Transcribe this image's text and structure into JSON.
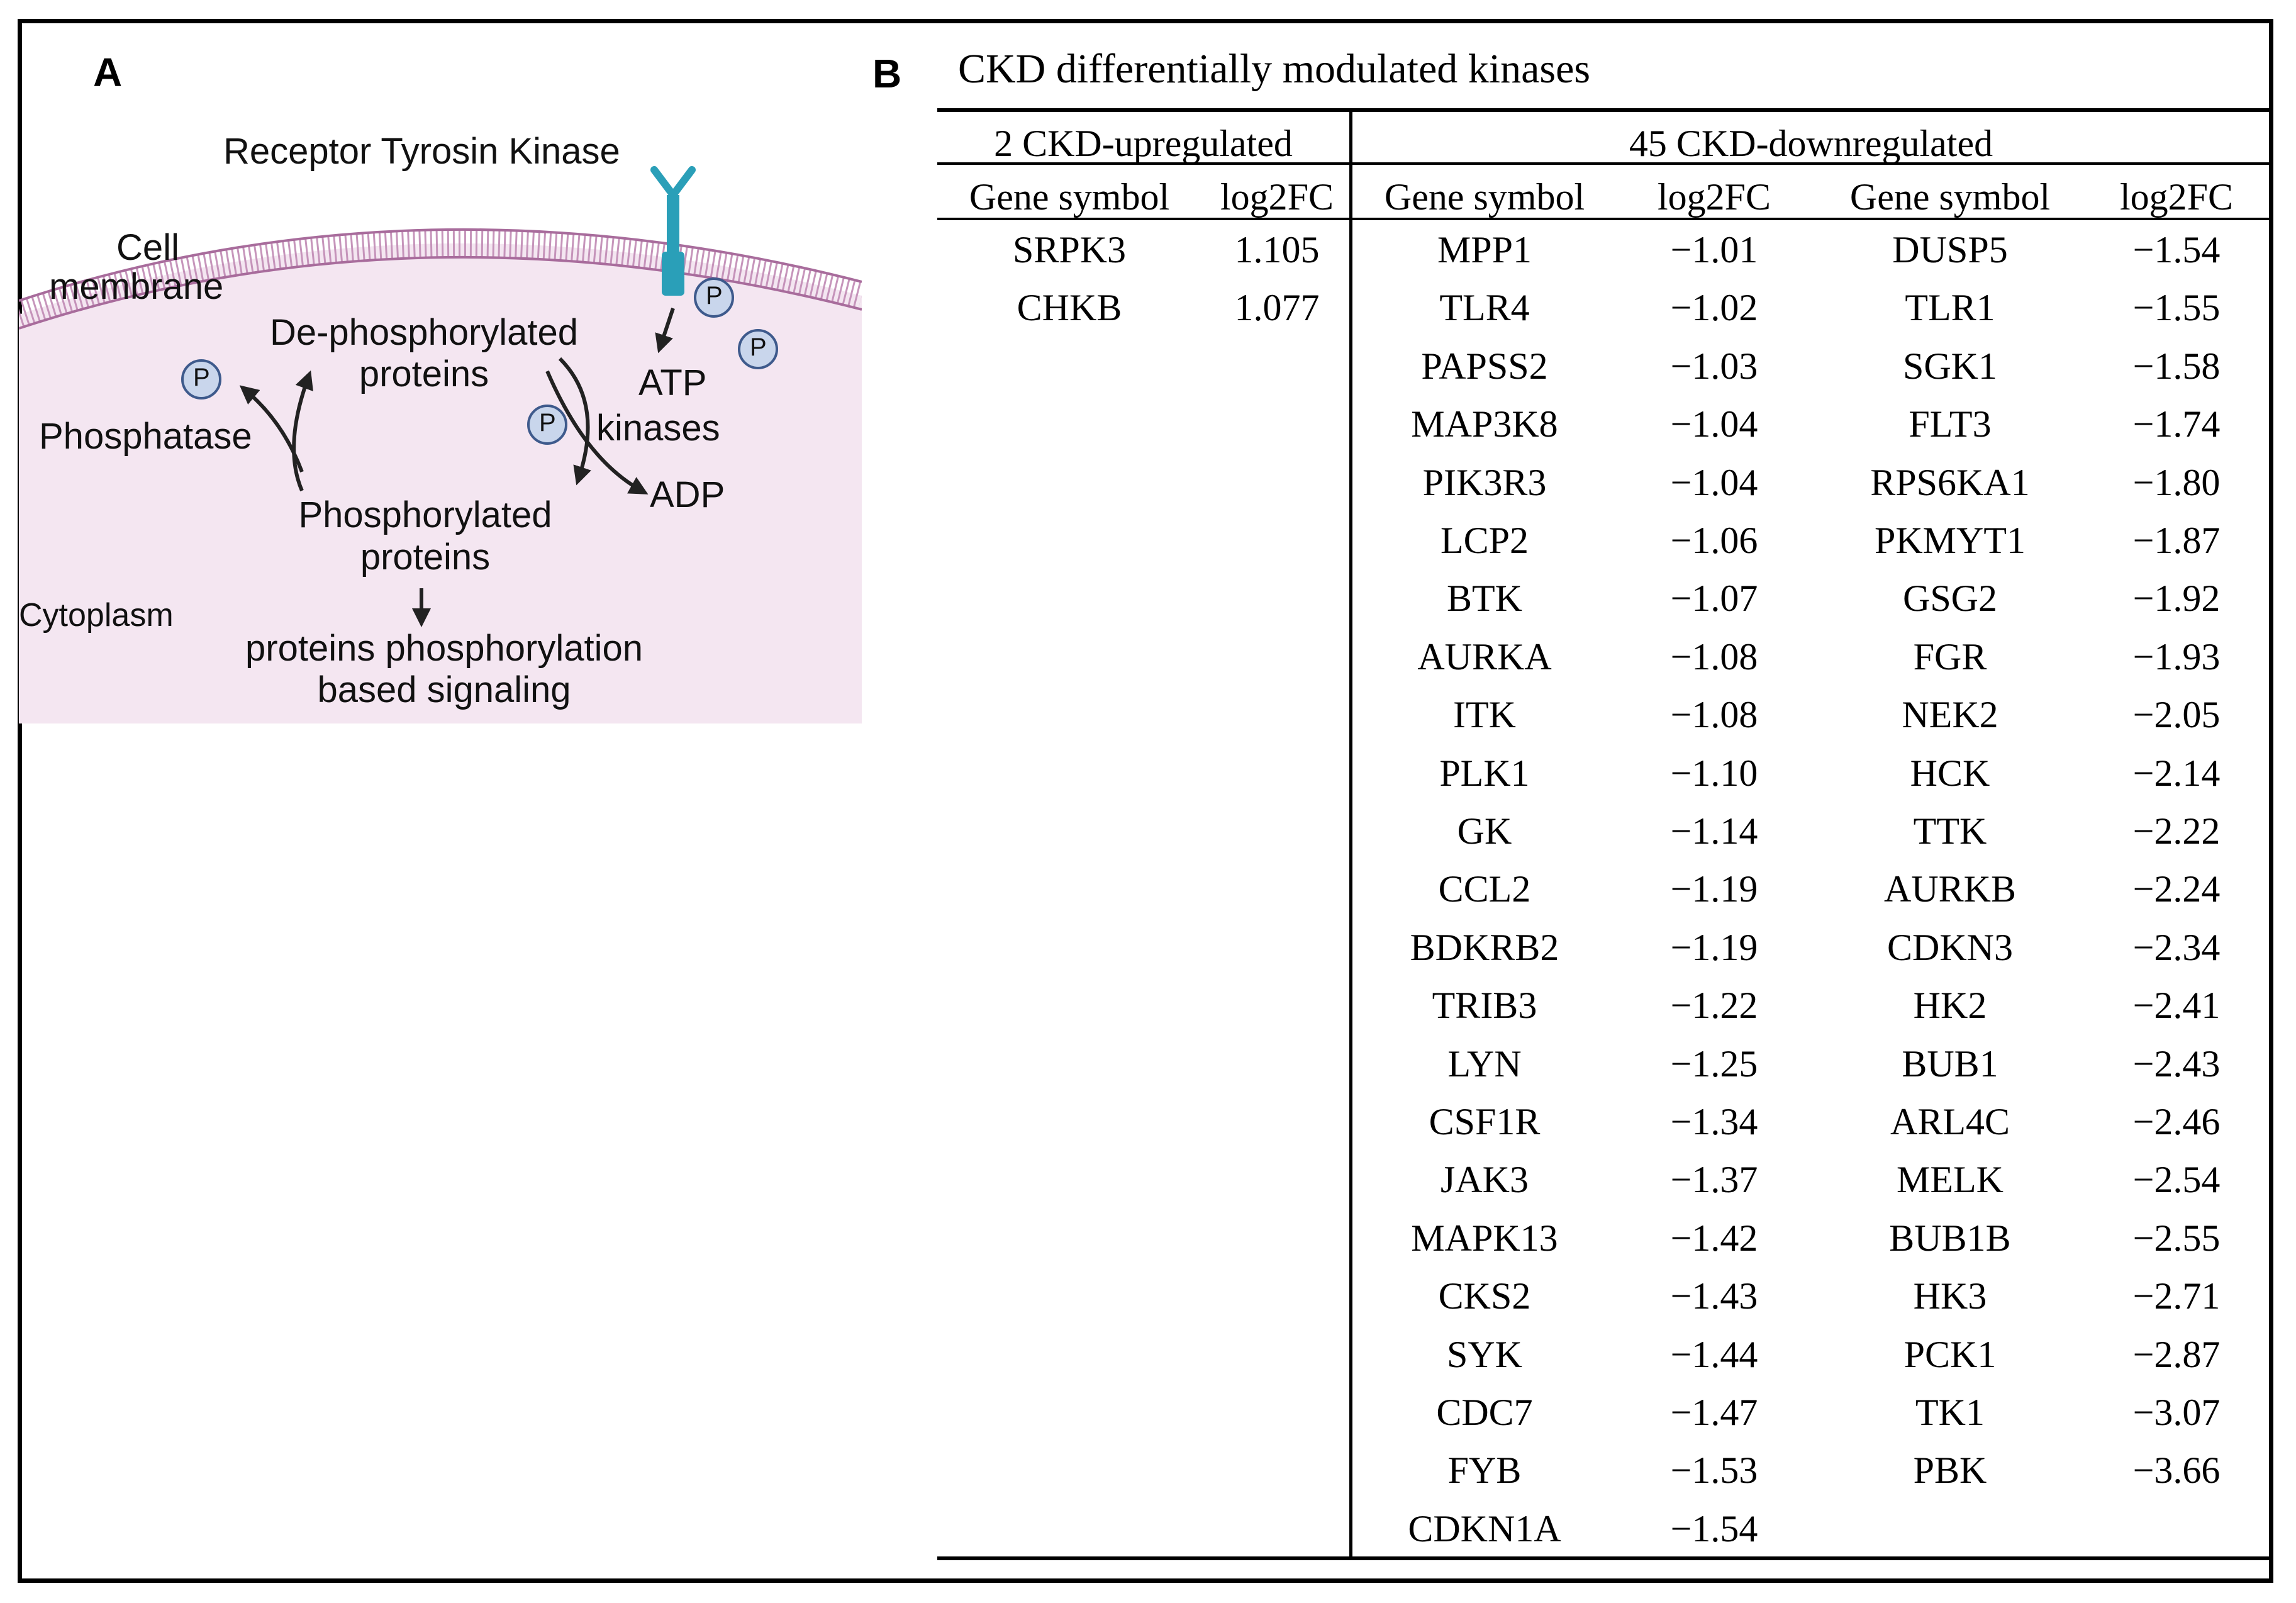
{
  "panel_a": {
    "letter": "A",
    "labels": {
      "receptor": "Receptor Tyrosin Kinase",
      "cell_membrane_line1": "Cell",
      "cell_membrane_line2": "membrane",
      "dephos_line1": "De-phosphorylated",
      "dephos_line2": "proteins",
      "phosphatase": "Phosphatase",
      "atp": "ATP",
      "kinases": "kinases",
      "adp": "ADP",
      "phos_line1": "Phosphorylated",
      "phos_line2": "proteins",
      "cytoplasm": "Cytoplasm",
      "signaling_line1": "proteins phosphorylation",
      "signaling_line2": "based signaling",
      "phosphate_symbol": "P"
    },
    "colors": {
      "cytoplasm_fill": "#f4e6f1",
      "membrane": "#c08ab4",
      "receptor": "#2a9fb8",
      "phosphate_fill": "#c9d6ec",
      "phosphate_stroke": "#3e5a8c"
    }
  },
  "panel_b": {
    "letter": "B",
    "title": "CKD differentially modulated kinases",
    "group_up": "2 CKD-upregulated",
    "group_down": "45 CKD-downregulated",
    "col_gene": "Gene symbol",
    "col_fc": "log2FC",
    "upregulated": [
      {
        "gene": "SRPK3",
        "fc": "1.105"
      },
      {
        "gene": "CHKB",
        "fc": "1.077"
      }
    ],
    "downregulated_col1": [
      {
        "gene": "MPP1",
        "fc": "−1.01"
      },
      {
        "gene": "TLR4",
        "fc": "−1.02"
      },
      {
        "gene": "PAPSS2",
        "fc": "−1.03"
      },
      {
        "gene": "MAP3K8",
        "fc": "−1.04"
      },
      {
        "gene": "PIK3R3",
        "fc": "−1.04"
      },
      {
        "gene": "LCP2",
        "fc": "−1.06"
      },
      {
        "gene": "BTK",
        "fc": "−1.07"
      },
      {
        "gene": "AURKA",
        "fc": "−1.08"
      },
      {
        "gene": "ITK",
        "fc": "−1.08"
      },
      {
        "gene": "PLK1",
        "fc": "−1.10"
      },
      {
        "gene": "GK",
        "fc": "−1.14"
      },
      {
        "gene": "CCL2",
        "fc": "−1.19"
      },
      {
        "gene": "BDKRB2",
        "fc": "−1.19"
      },
      {
        "gene": "TRIB3",
        "fc": "−1.22"
      },
      {
        "gene": "LYN",
        "fc": "−1.25"
      },
      {
        "gene": "CSF1R",
        "fc": "−1.34"
      },
      {
        "gene": "JAK3",
        "fc": "−1.37"
      },
      {
        "gene": "MAPK13",
        "fc": "−1.42"
      },
      {
        "gene": "CKS2",
        "fc": "−1.43"
      },
      {
        "gene": "SYK",
        "fc": "−1.44"
      },
      {
        "gene": "CDC7",
        "fc": "−1.47"
      },
      {
        "gene": "FYB",
        "fc": "−1.53"
      },
      {
        "gene": "CDKN1A",
        "fc": "−1.54"
      }
    ],
    "downregulated_col2": [
      {
        "gene": "DUSP5",
        "fc": "−1.54"
      },
      {
        "gene": "TLR1",
        "fc": "−1.55"
      },
      {
        "gene": "SGK1",
        "fc": "−1.58"
      },
      {
        "gene": "FLT3",
        "fc": "−1.74"
      },
      {
        "gene": "RPS6KA1",
        "fc": "−1.80"
      },
      {
        "gene": "PKMYT1",
        "fc": "−1.87"
      },
      {
        "gene": "GSG2",
        "fc": "−1.92"
      },
      {
        "gene": "FGR",
        "fc": "−1.93"
      },
      {
        "gene": "NEK2",
        "fc": "−2.05"
      },
      {
        "gene": "HCK",
        "fc": "−2.14"
      },
      {
        "gene": "TTK",
        "fc": "−2.22"
      },
      {
        "gene": "AURKB",
        "fc": "−2.24"
      },
      {
        "gene": "CDKN3",
        "fc": "−2.34"
      },
      {
        "gene": "HK2",
        "fc": "−2.41"
      },
      {
        "gene": "BUB1",
        "fc": "−2.43"
      },
      {
        "gene": "ARL4C",
        "fc": "−2.46"
      },
      {
        "gene": "MELK",
        "fc": "−2.54"
      },
      {
        "gene": "BUB1B",
        "fc": "−2.55"
      },
      {
        "gene": "HK3",
        "fc": "−2.71"
      },
      {
        "gene": "PCK1",
        "fc": "−2.87"
      },
      {
        "gene": "TK1",
        "fc": "−3.07"
      },
      {
        "gene": "PBK",
        "fc": "−3.66"
      }
    ]
  }
}
